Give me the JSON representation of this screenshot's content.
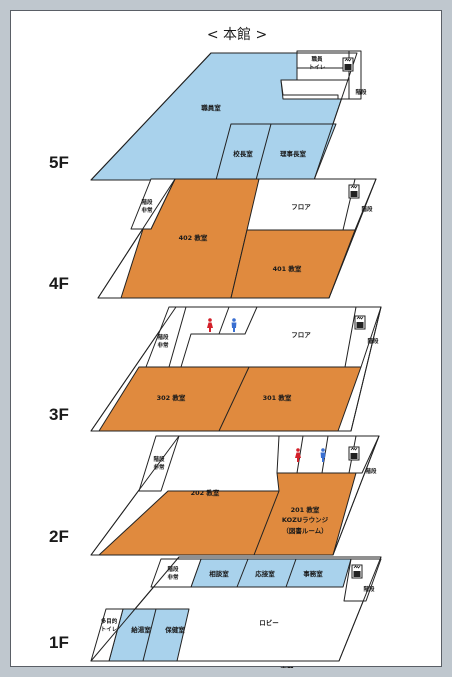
{
  "title": "< 本館 >",
  "colors": {
    "office": "#a9d2ec",
    "classroom": "#e08a3e",
    "common": "#ffffff",
    "male": "#3a6fd1",
    "female": "#d3202a"
  },
  "floors": [
    {
      "label": "5F",
      "rooms": [
        "職員室",
        "職員",
        "トイレ",
        "階段",
        "校長室",
        "理事長室"
      ]
    },
    {
      "label": "4F",
      "rooms": [
        "階段",
        "非常",
        "402 教室",
        "フロア",
        "階段",
        "401 教室"
      ]
    },
    {
      "label": "3F",
      "rooms": [
        "階段",
        "非常",
        "フロア",
        "階段",
        "302 教室",
        "301 教室"
      ]
    },
    {
      "label": "2F",
      "rooms": [
        "階段",
        "非常",
        "階段",
        "202 教室",
        "201 教室",
        "KOZUラウンジ",
        "（図書ルーム）"
      ]
    },
    {
      "label": "1F",
      "rooms": [
        "階段",
        "非常",
        "相談室",
        "応接室",
        "事務室",
        "階段",
        "多目的",
        "トイレ",
        "給湯室",
        "保健室",
        "ロビー",
        "玄関"
      ]
    }
  ]
}
